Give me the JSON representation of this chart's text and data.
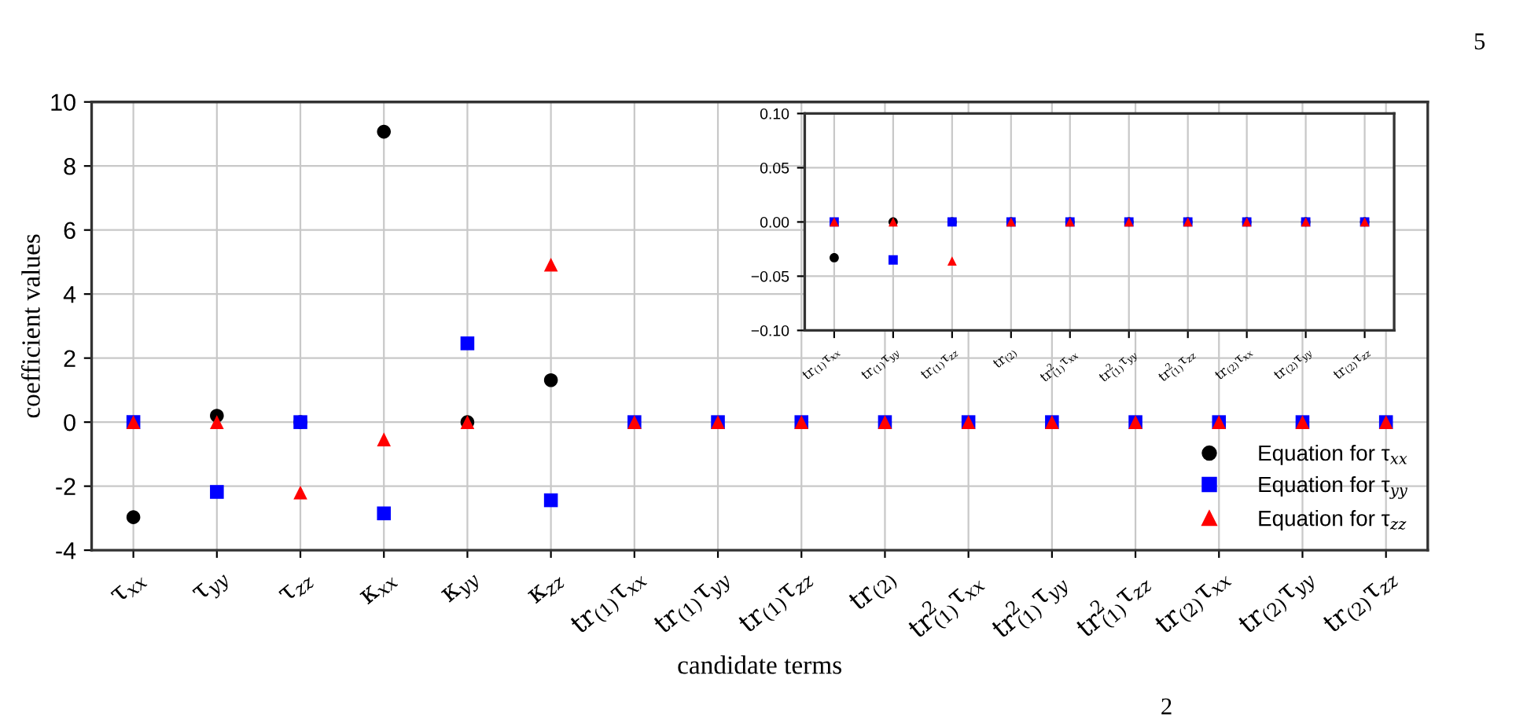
{
  "chart_data": [
    {
      "type": "scatter",
      "xlabel": "candidate terms",
      "ylabel": "coefficient values",
      "categories": [
        "τ$_{xx}$",
        "τ$_{yy}$",
        "τ$_{zz}$",
        "κ$_{xx}$",
        "κ$_{yy}$",
        "κ$_{zz}$",
        "tr$_{(1)}$τ$_{xx}$",
        "tr$_{(1)}$τ$_{yy}$",
        "tr$_{(1)}$τ$_{zz}$",
        "tr$_{(2)}$",
        "tr$^{2}$$_{(1)}$τ$_{xx}$",
        "tr$^{2}$$_{(1)}$τ$_{yy}$",
        "tr$^{2}$$_{(1)}$τ$_{zz}$",
        "tr$_{(2)}$τ$_{xx}$",
        "tr$_{(2)}$τ$_{yy}$",
        "tr$_{(2)}$τ$_{zz}$"
      ],
      "series": [
        {
          "name": "Equation for τ$_{xx}$",
          "color": "#000000",
          "marker": "circle",
          "values": [
            -2.97,
            0.2,
            0,
            9.07,
            0,
            1.31,
            null,
            null,
            null,
            null,
            null,
            null,
            null,
            null,
            null,
            null
          ]
        },
        {
          "name": "Equation for τ$_{yy}$",
          "color": "#0000ff",
          "marker": "square",
          "values": [
            0,
            -2.18,
            0,
            -2.85,
            2.46,
            -2.44,
            0,
            0,
            0,
            0,
            0,
            0,
            0,
            0,
            0,
            0
          ]
        },
        {
          "name": "Equation for τ$_{zz}$",
          "color": "#ff0000",
          "marker": "triangle",
          "values": [
            0,
            0,
            -2.2,
            -0.54,
            0,
            4.92,
            0,
            0,
            0,
            0,
            0,
            0,
            0,
            0,
            0,
            0
          ]
        }
      ],
      "ylim": [
        -4,
        10
      ],
      "yticks": [
        -4,
        -2,
        0,
        2,
        4,
        6,
        8,
        10
      ],
      "grid": true,
      "legend": "bottom right",
      "annotations": [
        "5",
        "2"
      ]
    },
    {
      "type": "scatter",
      "categories": [
        "tr$_{(1)}$τ$_{xx}$",
        "tr$_{(1)}$τ$_{yy}$",
        "tr$_{(1)}$τ$_{zz}$",
        "tr$_{(2)}$",
        "tr$^{2}$$_{(1)}$τ$_{xx}$",
        "tr$^{2}$$_{(1)}$τ$_{yy}$",
        "tr$^{2}$$_{(1)}$τ$_{zz}$",
        "tr$_{(2)}$τ$_{xx}$",
        "tr$_{(2)}$τ$_{yy}$",
        "tr$_{(2)}$τ$_{zz}$"
      ],
      "series": [
        {
          "color": "#000000",
          "marker": "circle",
          "values": [
            -0.033,
            0,
            0,
            0,
            0,
            0,
            0,
            0,
            0,
            0
          ]
        },
        {
          "color": "#0000ff",
          "marker": "square",
          "values": [
            0,
            -0.035,
            0,
            0,
            0,
            0,
            0,
            0,
            0,
            0
          ]
        },
        {
          "color": "#ff0000",
          "marker": "triangle",
          "values": [
            0,
            0,
            -0.036,
            0,
            0,
            0,
            0,
            0,
            0,
            0
          ]
        }
      ],
      "ylim": [
        -0.1,
        0.1
      ],
      "yticks": [
        {
          "value": -0.1,
          "label": "−0.10"
        },
        {
          "value": -0.05,
          "label": "−0.05"
        },
        {
          "value": 0,
          "label": "0.00"
        },
        {
          "value": 0.05,
          "label": "0.05"
        },
        {
          "value": 0.1,
          "label": "0.10"
        }
      ],
      "grid": true
    }
  ]
}
